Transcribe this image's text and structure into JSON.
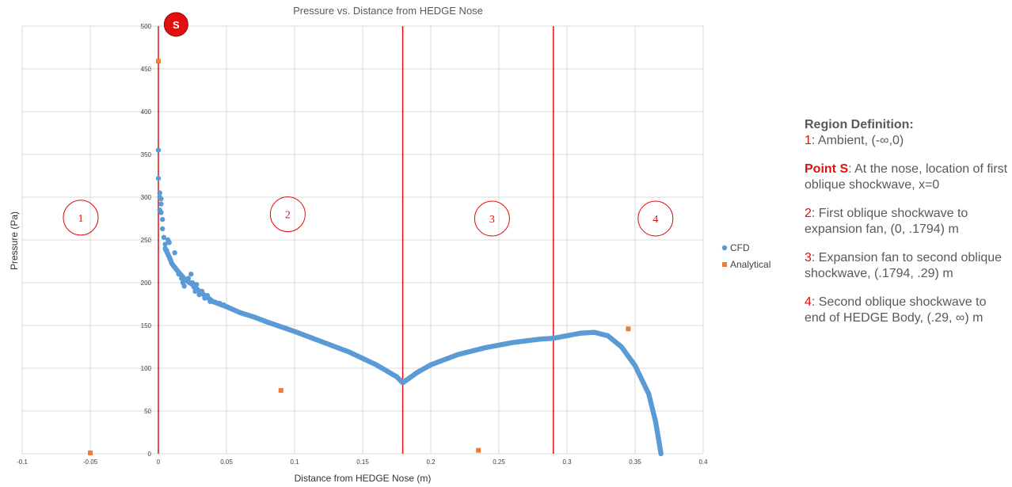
{
  "chart_data": {
    "type": "scatter",
    "title": "Pressure vs. Distance from HEDGE Nose",
    "xlabel": "Distance from HEDGE Nose (m)",
    "ylabel": "Pressure (Pa)",
    "xlim": [
      -0.1,
      0.4
    ],
    "ylim": [
      0,
      500
    ],
    "x_ticks": [
      "-0.1",
      "-0.05",
      "0",
      "0.05",
      "0.1",
      "0.15",
      "0.2",
      "0.25",
      "0.3",
      "0.35",
      "0.4"
    ],
    "y_ticks": [
      "0",
      "50",
      "100",
      "150",
      "200",
      "250",
      "300",
      "350",
      "400",
      "450",
      "500"
    ],
    "grid": true,
    "legend_position": "right",
    "colors": {
      "cfd": "#5b9bd5",
      "analytical": "#ed7d31",
      "region_line": "#e01010",
      "grid": "#d9d9d9"
    },
    "series": [
      {
        "name": "CFD",
        "marker": "circle",
        "curve": [
          [
            0.005,
            240
          ],
          [
            0.008,
            230
          ],
          [
            0.01,
            222
          ],
          [
            0.015,
            212
          ],
          [
            0.02,
            203
          ],
          [
            0.025,
            198
          ],
          [
            0.03,
            190
          ],
          [
            0.035,
            184
          ],
          [
            0.04,
            178
          ],
          [
            0.05,
            172
          ],
          [
            0.06,
            165
          ],
          [
            0.07,
            160
          ],
          [
            0.08,
            154
          ],
          [
            0.1,
            143
          ],
          [
            0.12,
            131
          ],
          [
            0.14,
            119
          ],
          [
            0.16,
            104
          ],
          [
            0.175,
            90
          ],
          [
            0.1794,
            83
          ],
          [
            0.19,
            95
          ],
          [
            0.2,
            104
          ],
          [
            0.22,
            116
          ],
          [
            0.24,
            124
          ],
          [
            0.26,
            130
          ],
          [
            0.28,
            134
          ],
          [
            0.29,
            135
          ],
          [
            0.3,
            138
          ],
          [
            0.31,
            141
          ],
          [
            0.32,
            142
          ],
          [
            0.33,
            138
          ],
          [
            0.34,
            125
          ],
          [
            0.35,
            103
          ],
          [
            0.36,
            70
          ],
          [
            0.365,
            38
          ],
          [
            0.368,
            10
          ],
          [
            0.369,
            0
          ]
        ],
        "scatter": [
          [
            0,
            355
          ],
          [
            0,
            322
          ],
          [
            0.001,
            305
          ],
          [
            0.001,
            300
          ],
          [
            0.002,
            298
          ],
          [
            0.002,
            292
          ],
          [
            0.001,
            285
          ],
          [
            0.002,
            282
          ],
          [
            0.003,
            274
          ],
          [
            0.003,
            263
          ],
          [
            0.004,
            253
          ],
          [
            0.005,
            245
          ],
          [
            0.006,
            238
          ],
          [
            0.007,
            250
          ],
          [
            0.008,
            247
          ],
          [
            0.012,
            235
          ],
          [
            0.015,
            210
          ],
          [
            0.017,
            205
          ],
          [
            0.018,
            200
          ],
          [
            0.019,
            196
          ],
          [
            0.022,
            205
          ],
          [
            0.024,
            210
          ],
          [
            0.025,
            200
          ],
          [
            0.026,
            195
          ],
          [
            0.027,
            190
          ],
          [
            0.028,
            198
          ],
          [
            0.03,
            186
          ],
          [
            0.032,
            190
          ],
          [
            0.034,
            182
          ],
          [
            0.036,
            185
          ],
          [
            0.038,
            178
          ],
          [
            0.042,
            177
          ],
          [
            0.045,
            176
          ],
          [
            0.048,
            174
          ]
        ]
      },
      {
        "name": "Analytical",
        "marker": "square",
        "points": [
          [
            -0.05,
            1
          ],
          [
            0,
            459
          ],
          [
            0.09,
            74
          ],
          [
            0.235,
            4
          ],
          [
            0.345,
            146
          ]
        ]
      }
    ],
    "region_lines_x": [
      0,
      0.1794,
      0.29
    ],
    "region_markers": [
      {
        "label": "1",
        "x": -0.057,
        "y": 276
      },
      {
        "label": "2",
        "x": 0.095,
        "y": 280
      },
      {
        "label": "3",
        "x": 0.245,
        "y": 275
      },
      {
        "label": "4",
        "x": 0.365,
        "y": 275
      }
    ],
    "point_s": {
      "label": "S",
      "x": 0.013,
      "y": 502
    }
  },
  "notes": {
    "heading": "Region Definition:",
    "items": [
      {
        "key": "1",
        "sep": ": ",
        "text": "Ambient, (-∞,0)",
        "bold": false
      },
      {
        "key": "Point S",
        "sep": ": ",
        "text": "At the nose, location of first oblique shockwave, x=0",
        "bold": true
      },
      {
        "key": "2",
        "sep": ": ",
        "text": "First oblique shockwave to expansion fan, (0, .1794) m",
        "bold": false
      },
      {
        "key": "3",
        "sep": ": ",
        "text": "Expansion fan to second oblique shockwave, (.1794, .29) m",
        "bold": false
      },
      {
        "key": "4",
        "sep": ": ",
        "text": "Second oblique shockwave to end of HEDGE Body, (.29, ∞) m",
        "bold": false
      }
    ]
  }
}
